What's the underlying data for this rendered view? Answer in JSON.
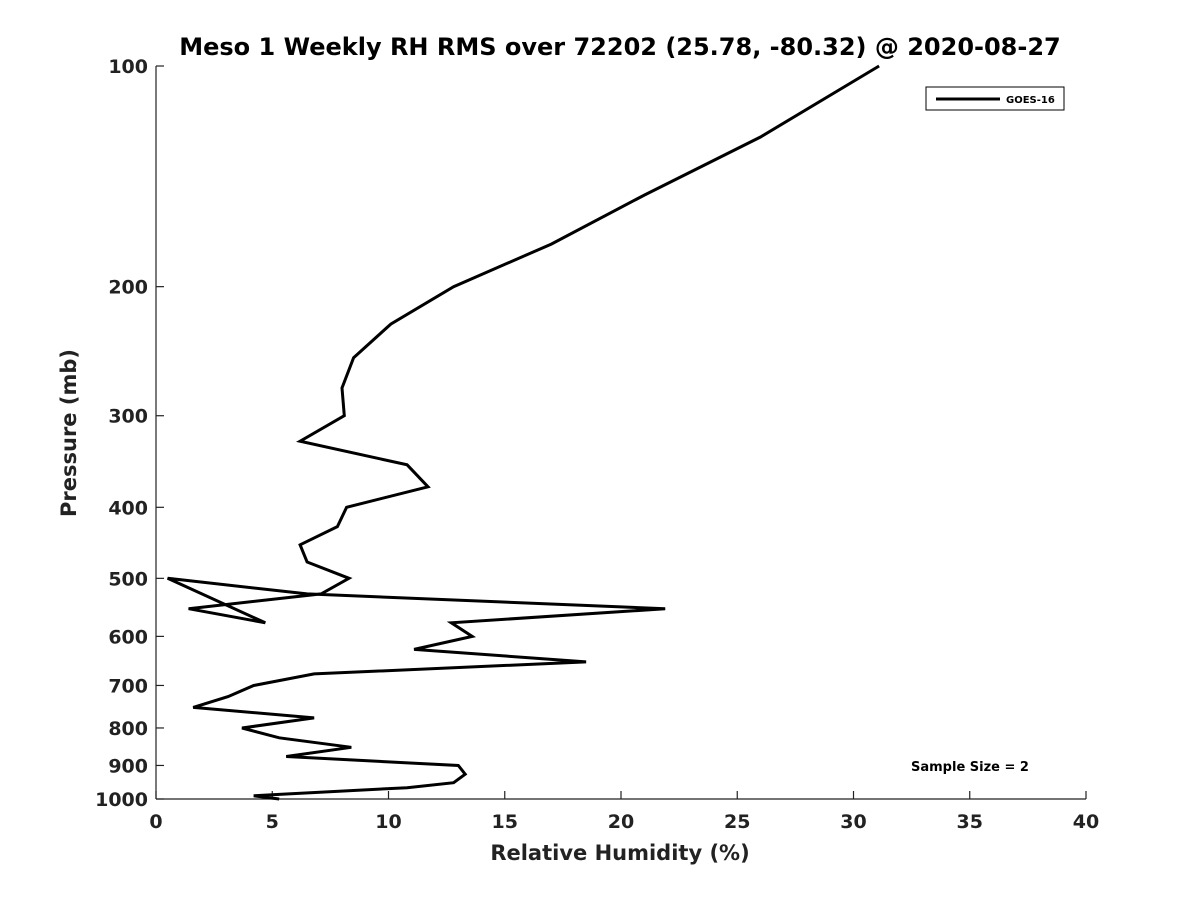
{
  "chart_data": {
    "type": "line",
    "title": "Meso 1 Weekly RH RMS over 72202 (25.78, -80.32) @ 2020-08-27",
    "xlabel": "Relative Humidity (%)",
    "ylabel": "Pressure (mb)",
    "xlim": [
      0,
      40
    ],
    "ylim": [
      100,
      1000
    ],
    "y_scale": "log",
    "y_reversed": true,
    "x_ticks": [
      0,
      5,
      10,
      15,
      20,
      25,
      30,
      35,
      40
    ],
    "y_ticks": [
      100,
      200,
      300,
      400,
      500,
      600,
      700,
      800,
      900,
      1000
    ],
    "grid": false,
    "legend_position": "top-right",
    "annotation": "Sample Size = 2",
    "colors": {
      "line": "#000000",
      "axis": "#222222"
    },
    "series": [
      {
        "name": "GOES-16",
        "points": [
          [
            31.1,
            100
          ],
          [
            26.0,
            125
          ],
          [
            21.0,
            150
          ],
          [
            17.0,
            175
          ],
          [
            12.8,
            200
          ],
          [
            10.1,
            225
          ],
          [
            8.5,
            250
          ],
          [
            8.0,
            275
          ],
          [
            8.1,
            300
          ],
          [
            6.2,
            325
          ],
          [
            10.8,
            350
          ],
          [
            11.7,
            375
          ],
          [
            8.2,
            400
          ],
          [
            7.8,
            425
          ],
          [
            6.2,
            450
          ],
          [
            6.5,
            475
          ],
          [
            8.3,
            500
          ],
          [
            7.1,
            525
          ],
          [
            1.4,
            550
          ],
          [
            4.7,
            575
          ],
          [
            0.5,
            500
          ],
          [
            6.5,
            525
          ],
          [
            21.9,
            550
          ],
          [
            12.7,
            575
          ],
          [
            13.6,
            600
          ],
          [
            11.1,
            625
          ],
          [
            18.5,
            650
          ],
          [
            6.8,
            675
          ],
          [
            4.2,
            700
          ],
          [
            3.1,
            725
          ],
          [
            1.6,
            750
          ],
          [
            1.6,
            750
          ],
          [
            6.8,
            775
          ],
          [
            3.7,
            800
          ],
          [
            5.3,
            825
          ],
          [
            8.4,
            850
          ],
          [
            5.6,
            875
          ],
          [
            13.0,
            900
          ],
          [
            13.3,
            925
          ],
          [
            12.8,
            950
          ],
          [
            10.8,
            965
          ],
          [
            5.4,
            985
          ],
          [
            4.2,
            990
          ],
          [
            5.3,
            1000
          ]
        ]
      }
    ]
  }
}
